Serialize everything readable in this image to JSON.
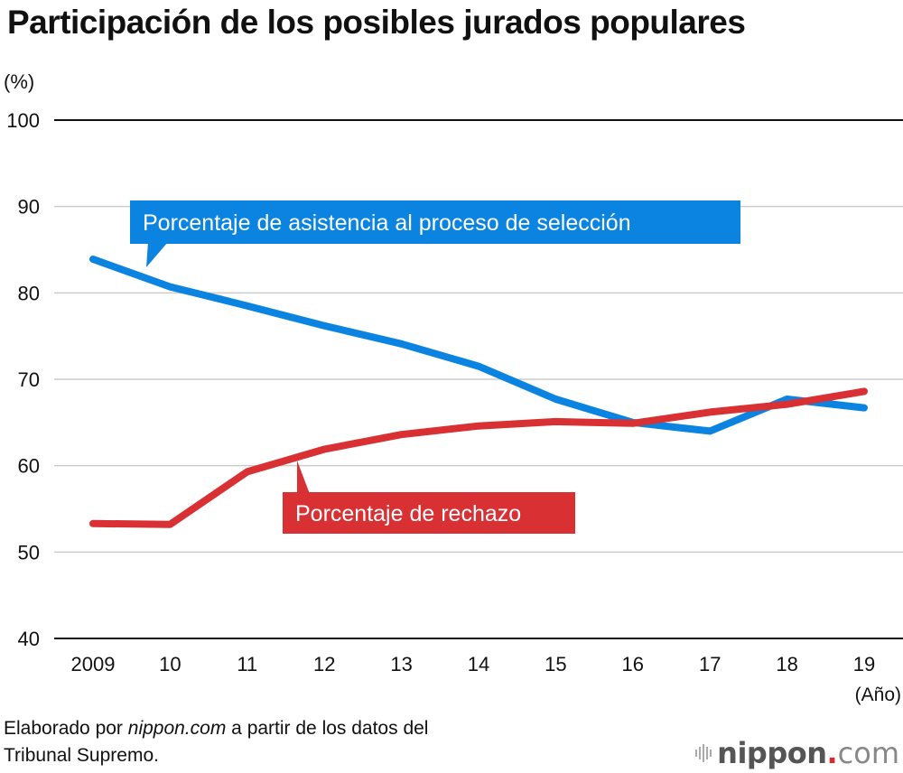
{
  "chart_data": {
    "type": "line",
    "title": "Participación de los posibles jurados populares",
    "ylabel": "(%)",
    "xlabel": "(Año)",
    "ylim": [
      40,
      100
    ],
    "yticks": [
      100,
      90,
      80,
      70,
      60,
      50,
      40
    ],
    "grid": true,
    "categories": [
      "2009",
      "10",
      "11",
      "12",
      "13",
      "14",
      "15",
      "16",
      "17",
      "18",
      "19"
    ],
    "series": [
      {
        "name": "Porcentaje de asistencia al proceso de selección",
        "color": "#0a84e0",
        "values": [
          83.9,
          80.7,
          78.5,
          76.2,
          74.1,
          71.5,
          67.7,
          65.0,
          64.0,
          67.7,
          66.7
        ]
      },
      {
        "name": "Porcentaje de rechazo",
        "color": "#d93034",
        "values": [
          53.3,
          53.2,
          59.3,
          61.9,
          63.6,
          64.6,
          65.1,
          64.9,
          66.2,
          67.1,
          68.6
        ]
      }
    ]
  },
  "footer": {
    "source_prefix": "Elaborado por ",
    "source_site": "nippon.com",
    "source_suffix": " a partir de los datos del",
    "source_line2": "Tribunal Supremo."
  },
  "logo": {
    "brand": "nippon",
    "dot": ".",
    "tld": "com"
  }
}
